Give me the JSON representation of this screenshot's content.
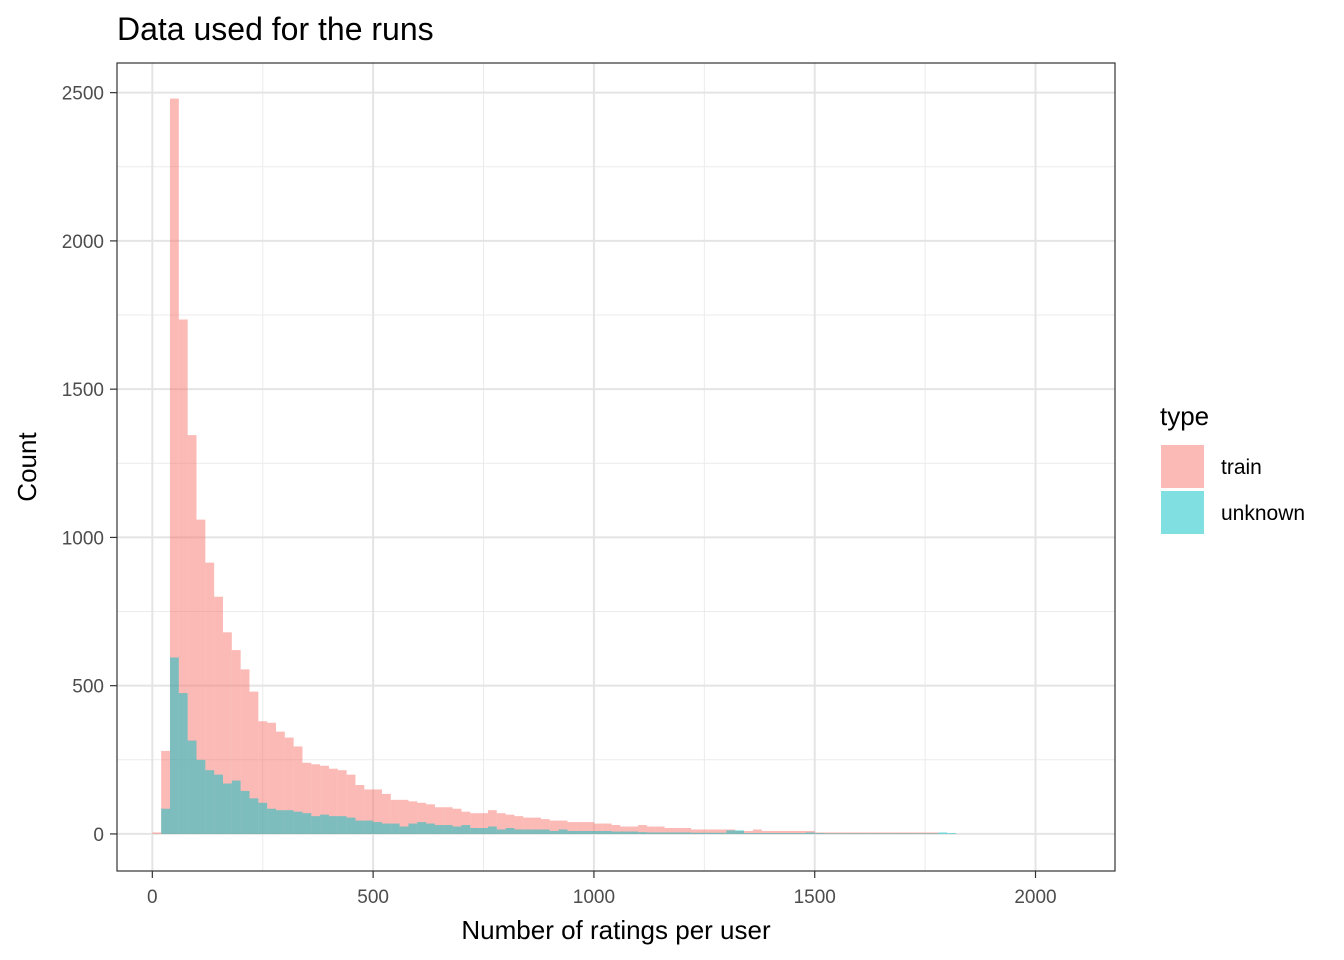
{
  "chart_data": {
    "type": "bar",
    "subtype": "overlapping-histogram",
    "title": "Data used for the runs",
    "xlabel": "Number of ratings per user",
    "ylabel": "Count",
    "xlim": [
      -80,
      2180
    ],
    "ylim": [
      -125,
      2600
    ],
    "xticks": [
      0,
      500,
      1000,
      1500,
      2000
    ],
    "yticks": [
      0,
      500,
      1000,
      1500,
      2000,
      2500
    ],
    "xtick_labels": [
      "0",
      "500",
      "1000",
      "1500",
      "2000"
    ],
    "ytick_labels": [
      "0",
      "500",
      "1000",
      "1500",
      "2000",
      "2500"
    ],
    "grid": true,
    "legend": {
      "title": "type",
      "position": "right",
      "entries": [
        "train",
        "unknown"
      ]
    },
    "bin_width": 20,
    "series": [
      {
        "name": "train",
        "color": "#F8766D",
        "opacity": 0.5,
        "bins": [
          [
            10,
            5
          ],
          [
            30,
            280
          ],
          [
            50,
            2480
          ],
          [
            70,
            1735
          ],
          [
            90,
            1345
          ],
          [
            110,
            1060
          ],
          [
            130,
            915
          ],
          [
            150,
            800
          ],
          [
            170,
            680
          ],
          [
            190,
            620
          ],
          [
            210,
            555
          ],
          [
            230,
            480
          ],
          [
            250,
            380
          ],
          [
            270,
            375
          ],
          [
            290,
            345
          ],
          [
            310,
            325
          ],
          [
            330,
            295
          ],
          [
            350,
            240
          ],
          [
            370,
            235
          ],
          [
            390,
            230
          ],
          [
            410,
            220
          ],
          [
            430,
            215
          ],
          [
            450,
            200
          ],
          [
            470,
            165
          ],
          [
            490,
            150
          ],
          [
            510,
            150
          ],
          [
            530,
            135
          ],
          [
            550,
            115
          ],
          [
            570,
            115
          ],
          [
            590,
            110
          ],
          [
            610,
            105
          ],
          [
            630,
            100
          ],
          [
            650,
            90
          ],
          [
            670,
            90
          ],
          [
            690,
            85
          ],
          [
            710,
            75
          ],
          [
            730,
            70
          ],
          [
            750,
            70
          ],
          [
            770,
            80
          ],
          [
            790,
            70
          ],
          [
            810,
            65
          ],
          [
            830,
            60
          ],
          [
            850,
            55
          ],
          [
            870,
            55
          ],
          [
            890,
            50
          ],
          [
            910,
            45
          ],
          [
            930,
            45
          ],
          [
            950,
            40
          ],
          [
            970,
            40
          ],
          [
            990,
            40
          ],
          [
            1010,
            35
          ],
          [
            1030,
            35
          ],
          [
            1050,
            30
          ],
          [
            1070,
            25
          ],
          [
            1090,
            25
          ],
          [
            1110,
            30
          ],
          [
            1130,
            25
          ],
          [
            1150,
            25
          ],
          [
            1170,
            20
          ],
          [
            1190,
            20
          ],
          [
            1210,
            20
          ],
          [
            1230,
            15
          ],
          [
            1250,
            15
          ],
          [
            1270,
            15
          ],
          [
            1290,
            15
          ],
          [
            1310,
            15
          ],
          [
            1330,
            10
          ],
          [
            1350,
            10
          ],
          [
            1370,
            15
          ],
          [
            1390,
            10
          ],
          [
            1410,
            10
          ],
          [
            1430,
            10
          ],
          [
            1450,
            10
          ],
          [
            1470,
            10
          ],
          [
            1490,
            10
          ],
          [
            1510,
            5
          ],
          [
            1530,
            5
          ],
          [
            1550,
            5
          ],
          [
            1570,
            5
          ],
          [
            1590,
            5
          ],
          [
            1610,
            5
          ],
          [
            1630,
            5
          ],
          [
            1650,
            5
          ],
          [
            1670,
            5
          ],
          [
            1690,
            5
          ],
          [
            1710,
            5
          ],
          [
            1730,
            5
          ],
          [
            1750,
            5
          ],
          [
            1770,
            5
          ]
        ]
      },
      {
        "name": "unknown",
        "color": "#00BFC4",
        "opacity": 0.5,
        "bins": [
          [
            30,
            85
          ],
          [
            50,
            595
          ],
          [
            70,
            475
          ],
          [
            90,
            315
          ],
          [
            110,
            250
          ],
          [
            130,
            215
          ],
          [
            150,
            200
          ],
          [
            170,
            170
          ],
          [
            190,
            180
          ],
          [
            210,
            145
          ],
          [
            230,
            120
          ],
          [
            250,
            105
          ],
          [
            270,
            85
          ],
          [
            290,
            80
          ],
          [
            310,
            80
          ],
          [
            330,
            75
          ],
          [
            350,
            70
          ],
          [
            370,
            60
          ],
          [
            390,
            65
          ],
          [
            410,
            60
          ],
          [
            430,
            60
          ],
          [
            450,
            55
          ],
          [
            470,
            45
          ],
          [
            490,
            45
          ],
          [
            510,
            40
          ],
          [
            530,
            35
          ],
          [
            550,
            35
          ],
          [
            570,
            25
          ],
          [
            590,
            35
          ],
          [
            610,
            40
          ],
          [
            630,
            35
          ],
          [
            650,
            30
          ],
          [
            670,
            30
          ],
          [
            690,
            25
          ],
          [
            710,
            30
          ],
          [
            730,
            20
          ],
          [
            750,
            20
          ],
          [
            770,
            25
          ],
          [
            790,
            15
          ],
          [
            810,
            20
          ],
          [
            830,
            15
          ],
          [
            850,
            15
          ],
          [
            870,
            15
          ],
          [
            890,
            15
          ],
          [
            910,
            10
          ],
          [
            930,
            15
          ],
          [
            950,
            10
          ],
          [
            970,
            10
          ],
          [
            990,
            10
          ],
          [
            1010,
            10
          ],
          [
            1030,
            10
          ],
          [
            1050,
            8
          ],
          [
            1070,
            8
          ],
          [
            1090,
            8
          ],
          [
            1110,
            6
          ],
          [
            1130,
            5
          ],
          [
            1150,
            5
          ],
          [
            1170,
            5
          ],
          [
            1190,
            5
          ],
          [
            1210,
            5
          ],
          [
            1230,
            4
          ],
          [
            1250,
            4
          ],
          [
            1270,
            4
          ],
          [
            1290,
            4
          ],
          [
            1310,
            12
          ],
          [
            1330,
            12
          ],
          [
            1350,
            3
          ],
          [
            1370,
            3
          ],
          [
            1390,
            3
          ],
          [
            1410,
            3
          ],
          [
            1430,
            3
          ],
          [
            1450,
            3
          ],
          [
            1470,
            3
          ],
          [
            1490,
            5
          ],
          [
            1510,
            3
          ],
          [
            1530,
            2
          ],
          [
            1550,
            2
          ],
          [
            1570,
            2
          ],
          [
            1590,
            2
          ],
          [
            1610,
            2
          ],
          [
            1630,
            2
          ],
          [
            1650,
            2
          ],
          [
            1670,
            2
          ],
          [
            1690,
            2
          ],
          [
            1710,
            2
          ],
          [
            1730,
            2
          ],
          [
            1750,
            2
          ],
          [
            1770,
            2
          ],
          [
            1790,
            5
          ],
          [
            1810,
            3
          ]
        ]
      }
    ]
  }
}
